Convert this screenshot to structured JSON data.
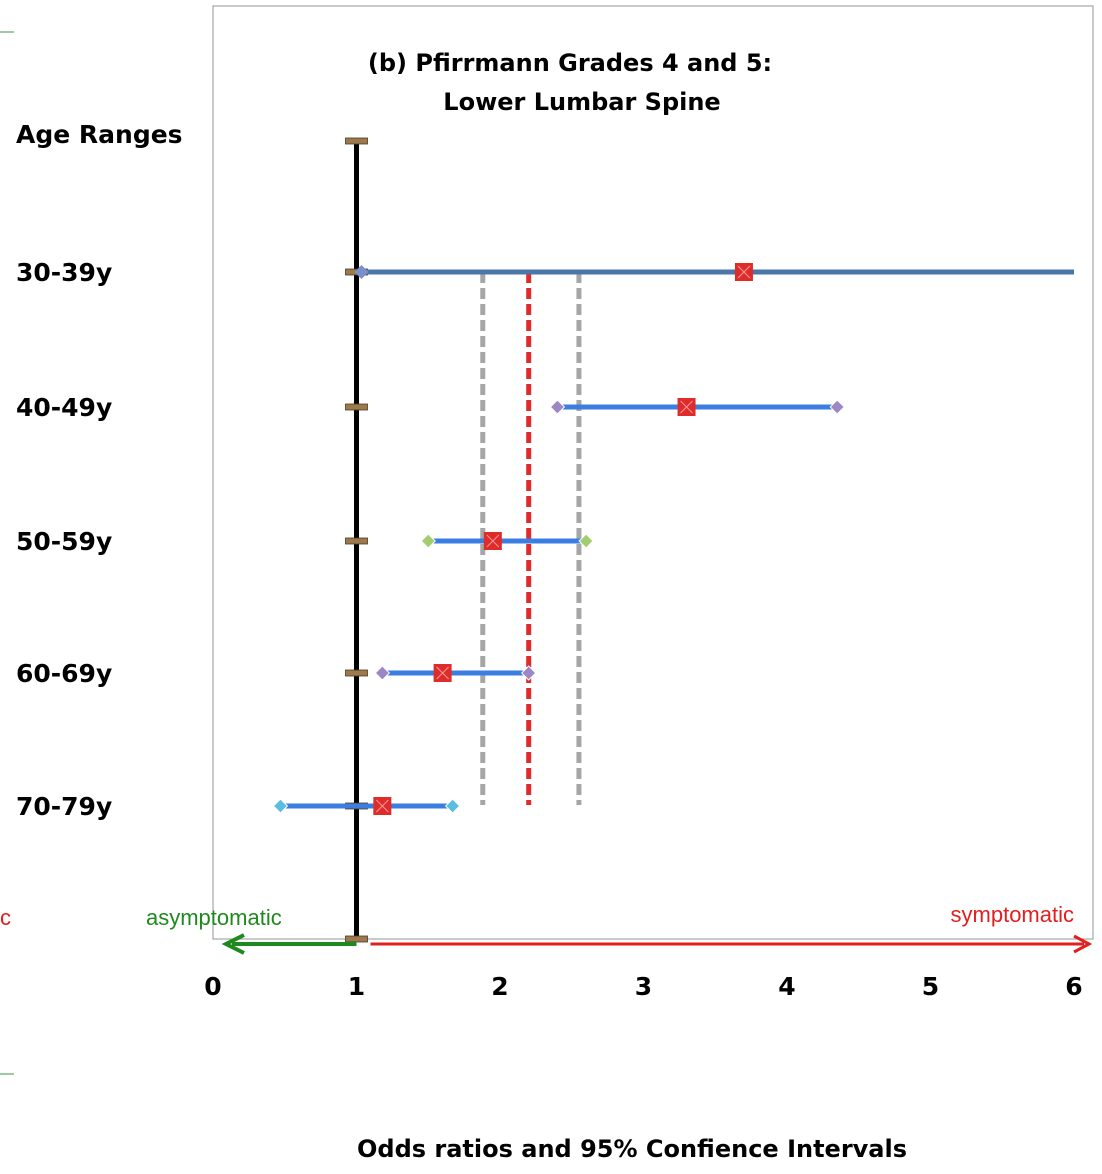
{
  "chart_data": {
    "type": "forest",
    "title_line1": "(b) Pfirrmann Grades 4 and 5:",
    "title_line2": "Lower Lumbar Spine",
    "y_header": "Age Ranges",
    "xlabel": "Odds ratios and 95% Confience Intervals",
    "xlim": [
      0,
      6
    ],
    "xticks": [
      "0",
      "1",
      "2",
      "3",
      "4",
      "5",
      "6"
    ],
    "reference_line": 1,
    "categories": [
      "30-39y",
      "40-49y",
      "50-59y",
      "60-69y",
      "70-79y"
    ],
    "rows": [
      {
        "label": "30-39y",
        "or": 3.7,
        "lower": 1.0,
        "upper": 6.0,
        "endpoint_color": "#7b8fc9"
      },
      {
        "label": "40-49y",
        "or": 3.3,
        "lower": 2.4,
        "upper": 4.35,
        "endpoint_color": "#9c86c4"
      },
      {
        "label": "50-59y",
        "or": 1.95,
        "lower": 1.5,
        "upper": 2.6,
        "endpoint_color": "#a3cd6e"
      },
      {
        "label": "60-69y",
        "or": 1.6,
        "lower": 1.18,
        "upper": 2.2,
        "endpoint_color": "#9c86c4"
      },
      {
        "label": "70-79y",
        "or": 1.18,
        "lower": 0.47,
        "upper": 1.67,
        "endpoint_color": "#5bbde0"
      }
    ],
    "pooled": {
      "estimate": 2.2,
      "lower": 1.88,
      "upper": 2.55
    },
    "direction_left": "asymptomatic",
    "direction_right": "symptomatic",
    "colors": {
      "ci_line": "#3b7de0",
      "ci_line_first": "#4a76a8",
      "point": "#e02b2b",
      "pooled_line": "#e02b2b",
      "pooled_ci_line": "#a6a6a6",
      "reference_line": "#000000",
      "tick_marker": "#9c7a4e",
      "asymptomatic": "#1e8a1e",
      "symptomatic": "#e31e1e"
    }
  }
}
